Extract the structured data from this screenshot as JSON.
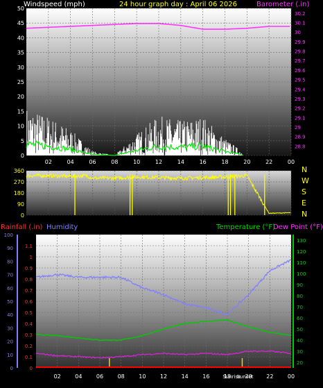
{
  "header": {
    "windspeed_label": "Windspeed (mph)",
    "title": "24 hour graph day : April 06 2026",
    "barometer_label": "Barometer (.in)"
  },
  "time_ticks": [
    "02",
    "04",
    "06",
    "08",
    "10",
    "12",
    "14",
    "16",
    "18",
    "20",
    "22",
    "00"
  ],
  "panel1": {
    "wind_ticks": [
      "0",
      "5",
      "10",
      "15",
      "20",
      "25",
      "30",
      "35",
      "40",
      "45",
      "50"
    ],
    "baro_ticks": [
      "28.8",
      "28.9",
      "29",
      "29.1",
      "29.2",
      "29.3",
      "29.4",
      "29.5",
      "29.6",
      "29.7",
      "29.8",
      "29.9",
      "30",
      "30.1",
      "30.2"
    ]
  },
  "panel2": {
    "dir_ticks": [
      "0",
      "90",
      "180",
      "270",
      "360"
    ],
    "compass": [
      "N",
      "W",
      "S",
      "E",
      "N"
    ]
  },
  "panel3": {
    "rainfall_label": "Rainfall (.in)",
    "humidity_label": "Humidity",
    "temperature_label": "Temperature (°F)",
    "dewpoint_label": "Dew Point (°F)",
    "humidity_ticks": [
      "0",
      "10",
      "20",
      "30",
      "40",
      "50",
      "60",
      "70",
      "80",
      "90",
      "100"
    ],
    "rain_ticks": [
      "0",
      "0.1",
      "0.2",
      "0.3",
      "0.4",
      "0.5",
      "0.6",
      "0.7",
      "0.8",
      "0.9",
      "1",
      "1.1"
    ],
    "temp_ticks": [
      "20",
      "30",
      "40",
      "50",
      "60",
      "70",
      "80",
      "90",
      "100",
      "110",
      "120",
      "130"
    ],
    "sunrise_label": "Sunrise",
    "sunset_label": "Sunset"
  },
  "colors": {
    "wind": "#ffffff",
    "gust": "#00ee00",
    "barometer": "#ff33ff",
    "direction": "#ffff00",
    "humidity": "#8080ff",
    "temperature": "#00cc00",
    "dewpoint": "#dd22dd",
    "rain": "#ff0000",
    "sun_marker": "#ffcc00"
  },
  "chart_data": [
    {
      "type": "line",
      "title": "24 hour graph day : April 06 2026",
      "x_hours": [
        0,
        2,
        4,
        6,
        8,
        10,
        12,
        14,
        16,
        18,
        20,
        22,
        24
      ],
      "series": [
        {
          "name": "Barometer (.in)",
          "values": [
            30.04,
            30.05,
            30.06,
            30.07,
            30.08,
            30.09,
            30.09,
            30.07,
            30.03,
            30.03,
            30.04,
            30.06,
            30.06
          ]
        },
        {
          "name": "Windspeed (mph)",
          "values": [
            11,
            9,
            6,
            1,
            0,
            5,
            9,
            8,
            9,
            4,
            0,
            0,
            0
          ]
        }
      ],
      "ylim_wind": [
        0,
        50
      ],
      "ylim_barometer": [
        28.7,
        30.25
      ]
    },
    {
      "type": "line",
      "x_hours": [
        0,
        2,
        4,
        5.5,
        6,
        8,
        10,
        12,
        14,
        16,
        18,
        20,
        22,
        24
      ],
      "values": [
        320,
        320,
        315,
        320,
        300,
        300,
        310,
        305,
        300,
        305,
        310,
        320,
        15,
        20
      ],
      "ylim": [
        0,
        360
      ]
    },
    {
      "type": "line",
      "x_hours": [
        0,
        2,
        4,
        6,
        8,
        10,
        12,
        14,
        16,
        18,
        20,
        22,
        24
      ],
      "series": [
        {
          "name": "Humidity",
          "values": [
            68,
            70,
            68,
            68,
            68,
            60,
            55,
            48,
            45,
            40,
            55,
            73,
            81
          ]
        },
        {
          "name": "Temperature (°F)",
          "values": [
            45,
            44,
            42,
            40,
            40,
            44,
            50,
            55,
            57,
            58,
            52,
            47,
            44
          ]
        },
        {
          "name": "Dew Point (°F)",
          "values": [
            28,
            26,
            25,
            24,
            25,
            27,
            28,
            27,
            28,
            27,
            30,
            30,
            28
          ]
        },
        {
          "name": "Rainfall (.in)",
          "values": [
            0,
            0,
            0,
            0,
            0,
            0,
            0,
            0,
            0,
            0,
            0,
            0,
            0
          ]
        }
      ],
      "ylim_humidity": [
        0,
        100
      ],
      "ylim_rain": [
        0,
        1.2
      ],
      "ylim_temperature": [
        15,
        135
      ],
      "sunrise_hour": 6.9,
      "sunset_hour": 19.4
    }
  ]
}
